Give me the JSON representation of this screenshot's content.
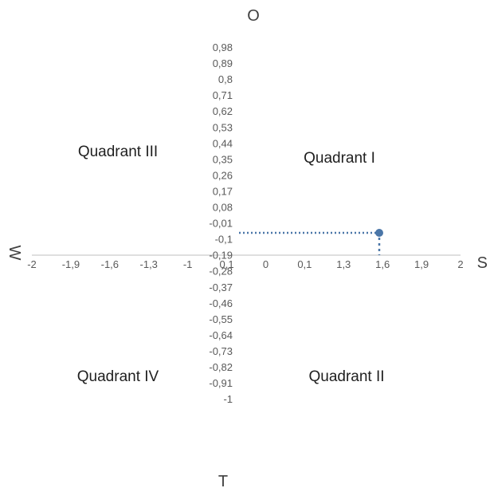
{
  "chart_data": {
    "type": "scatter",
    "title": "",
    "axis_names": {
      "top": "O",
      "bottom": "T",
      "left": "W",
      "right": "S"
    },
    "x_ticks": [
      "-2",
      "-1,9",
      "-1,6",
      "-1,3",
      "-1",
      "0,1",
      "0",
      "0,1",
      "1,3",
      "1,6",
      "1,9",
      "2"
    ],
    "y_ticks": [
      "0,98",
      "0,89",
      "0,8",
      "0,71",
      "0,62",
      "0,53",
      "0,44",
      "0,35",
      "0,26",
      "0,17",
      "0,08",
      "-0,01",
      "-0,1",
      "-0,19",
      "-0,28",
      "-0,37",
      "-0,46",
      "-0,55",
      "-0,64",
      "-0,73",
      "-0,82",
      "-0,91",
      "-1"
    ],
    "xlim": [
      -2,
      2
    ],
    "ylim": [
      -1,
      1
    ],
    "quadrant_labels": {
      "top_left": "Quadrant III",
      "top_right": "Quadrant I",
      "bottom_left": "Quadrant IV",
      "bottom_right": "Quadrant II"
    },
    "point": {
      "x": 1.6,
      "y": 0.1,
      "color": "#4a76a8"
    },
    "dotted_guides": true,
    "grid": false
  }
}
